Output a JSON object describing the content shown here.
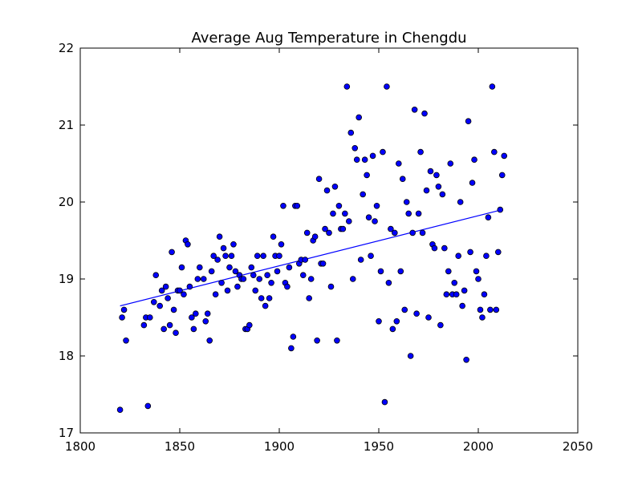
{
  "chart_data": {
    "type": "scatter",
    "title": "Average Aug Temperature in Chengdu",
    "xlabel": "",
    "ylabel": "",
    "xlim": [
      1800,
      2050
    ],
    "ylim": [
      17,
      22
    ],
    "xticks": [
      "1800",
      "1850",
      "1900",
      "1950",
      "2000",
      "2050"
    ],
    "yticks": [
      "17",
      "18",
      "19",
      "20",
      "21",
      "22"
    ],
    "grid": false,
    "colors": {
      "marker_fill": "#0000ff",
      "marker_edge": "#000000",
      "trend_line": "#0000ff"
    },
    "trend_line": {
      "x": [
        1820,
        2012
      ],
      "y": [
        18.65,
        19.9
      ]
    },
    "points": [
      [
        1820,
        17.3
      ],
      [
        1821,
        18.5
      ],
      [
        1822,
        18.6
      ],
      [
        1823,
        18.2
      ],
      [
        1832,
        18.4
      ],
      [
        1833,
        18.5
      ],
      [
        1834,
        17.35
      ],
      [
        1835,
        18.5
      ],
      [
        1837,
        18.7
      ],
      [
        1838,
        19.05
      ],
      [
        1840,
        18.65
      ],
      [
        1841,
        18.85
      ],
      [
        1842,
        18.35
      ],
      [
        1843,
        18.9
      ],
      [
        1844,
        18.75
      ],
      [
        1845,
        18.4
      ],
      [
        1846,
        19.35
      ],
      [
        1847,
        18.6
      ],
      [
        1848,
        18.3
      ],
      [
        1849,
        18.85
      ],
      [
        1850,
        18.85
      ],
      [
        1851,
        19.15
      ],
      [
        1852,
        18.8
      ],
      [
        1853,
        19.5
      ],
      [
        1854,
        19.45
      ],
      [
        1855,
        18.9
      ],
      [
        1856,
        18.5
      ],
      [
        1857,
        18.35
      ],
      [
        1858,
        18.55
      ],
      [
        1859,
        19.0
      ],
      [
        1860,
        19.15
      ],
      [
        1862,
        19.0
      ],
      [
        1863,
        18.45
      ],
      [
        1864,
        18.55
      ],
      [
        1865,
        18.2
      ],
      [
        1866,
        19.1
      ],
      [
        1867,
        19.3
      ],
      [
        1868,
        18.8
      ],
      [
        1869,
        19.25
      ],
      [
        1870,
        19.55
      ],
      [
        1871,
        18.95
      ],
      [
        1872,
        19.4
      ],
      [
        1873,
        19.3
      ],
      [
        1874,
        18.85
      ],
      [
        1875,
        19.15
      ],
      [
        1876,
        19.3
      ],
      [
        1877,
        19.45
      ],
      [
        1878,
        19.1
      ],
      [
        1879,
        18.9
      ],
      [
        1880,
        19.05
      ],
      [
        1881,
        19.0
      ],
      [
        1882,
        19.0
      ],
      [
        1883,
        18.35
      ],
      [
        1884,
        18.35
      ],
      [
        1885,
        18.4
      ],
      [
        1886,
        19.15
      ],
      [
        1887,
        19.05
      ],
      [
        1888,
        18.85
      ],
      [
        1889,
        19.3
      ],
      [
        1890,
        19.0
      ],
      [
        1891,
        18.75
      ],
      [
        1892,
        19.3
      ],
      [
        1893,
        18.65
      ],
      [
        1894,
        19.05
      ],
      [
        1895,
        18.75
      ],
      [
        1896,
        18.95
      ],
      [
        1897,
        19.55
      ],
      [
        1898,
        19.3
      ],
      [
        1899,
        19.1
      ],
      [
        1900,
        19.3
      ],
      [
        1901,
        19.45
      ],
      [
        1902,
        19.95
      ],
      [
        1903,
        18.95
      ],
      [
        1904,
        18.9
      ],
      [
        1905,
        19.15
      ],
      [
        1906,
        18.1
      ],
      [
        1907,
        18.25
      ],
      [
        1908,
        19.95
      ],
      [
        1909,
        19.95
      ],
      [
        1910,
        19.2
      ],
      [
        1911,
        19.25
      ],
      [
        1912,
        19.05
      ],
      [
        1913,
        19.25
      ],
      [
        1914,
        19.6
      ],
      [
        1915,
        18.75
      ],
      [
        1916,
        19.0
      ],
      [
        1917,
        19.5
      ],
      [
        1918,
        19.55
      ],
      [
        1919,
        18.2
      ],
      [
        1920,
        20.3
      ],
      [
        1921,
        19.2
      ],
      [
        1922,
        19.2
      ],
      [
        1923,
        19.65
      ],
      [
        1924,
        20.15
      ],
      [
        1925,
        19.6
      ],
      [
        1926,
        18.9
      ],
      [
        1927,
        19.85
      ],
      [
        1928,
        20.2
      ],
      [
        1929,
        18.2
      ],
      [
        1930,
        19.95
      ],
      [
        1931,
        19.65
      ],
      [
        1932,
        19.65
      ],
      [
        1933,
        19.85
      ],
      [
        1934,
        21.5
      ],
      [
        1935,
        19.75
      ],
      [
        1936,
        20.9
      ],
      [
        1937,
        19.0
      ],
      [
        1938,
        20.7
      ],
      [
        1939,
        20.55
      ],
      [
        1940,
        21.1
      ],
      [
        1941,
        19.25
      ],
      [
        1942,
        20.1
      ],
      [
        1943,
        20.55
      ],
      [
        1944,
        20.35
      ],
      [
        1945,
        19.8
      ],
      [
        1946,
        19.3
      ],
      [
        1947,
        20.6
      ],
      [
        1948,
        19.75
      ],
      [
        1949,
        19.95
      ],
      [
        1950,
        18.45
      ],
      [
        1951,
        19.1
      ],
      [
        1952,
        20.65
      ],
      [
        1953,
        17.4
      ],
      [
        1954,
        21.5
      ],
      [
        1955,
        18.95
      ],
      [
        1956,
        19.65
      ],
      [
        1957,
        18.35
      ],
      [
        1958,
        19.6
      ],
      [
        1959,
        18.45
      ],
      [
        1960,
        20.5
      ],
      [
        1961,
        19.1
      ],
      [
        1962,
        20.3
      ],
      [
        1963,
        18.6
      ],
      [
        1964,
        20.0
      ],
      [
        1965,
        19.85
      ],
      [
        1966,
        18.0
      ],
      [
        1967,
        19.6
      ],
      [
        1968,
        21.2
      ],
      [
        1969,
        18.55
      ],
      [
        1970,
        19.85
      ],
      [
        1971,
        20.65
      ],
      [
        1972,
        19.6
      ],
      [
        1973,
        21.15
      ],
      [
        1974,
        20.15
      ],
      [
        1975,
        18.5
      ],
      [
        1976,
        20.4
      ],
      [
        1977,
        19.45
      ],
      [
        1978,
        19.4
      ],
      [
        1979,
        20.35
      ],
      [
        1980,
        20.2
      ],
      [
        1981,
        18.4
      ],
      [
        1982,
        20.1
      ],
      [
        1983,
        19.4
      ],
      [
        1984,
        18.8
      ],
      [
        1985,
        19.1
      ],
      [
        1986,
        20.5
      ],
      [
        1987,
        18.8
      ],
      [
        1988,
        18.95
      ],
      [
        1989,
        18.8
      ],
      [
        1990,
        19.3
      ],
      [
        1991,
        20.0
      ],
      [
        1992,
        18.65
      ],
      [
        1993,
        18.85
      ],
      [
        1994,
        17.95
      ],
      [
        1995,
        21.05
      ],
      [
        1996,
        19.35
      ],
      [
        1997,
        20.25
      ],
      [
        1998,
        20.55
      ],
      [
        1999,
        19.1
      ],
      [
        2000,
        19.0
      ],
      [
        2001,
        18.6
      ],
      [
        2002,
        18.5
      ],
      [
        2003,
        18.8
      ],
      [
        2004,
        19.3
      ],
      [
        2005,
        19.8
      ],
      [
        2006,
        18.6
      ],
      [
        2007,
        21.5
      ],
      [
        2008,
        20.65
      ],
      [
        2009,
        18.6
      ],
      [
        2010,
        19.35
      ],
      [
        2011,
        19.9
      ],
      [
        2012,
        20.35
      ],
      [
        2013,
        20.6
      ]
    ]
  }
}
